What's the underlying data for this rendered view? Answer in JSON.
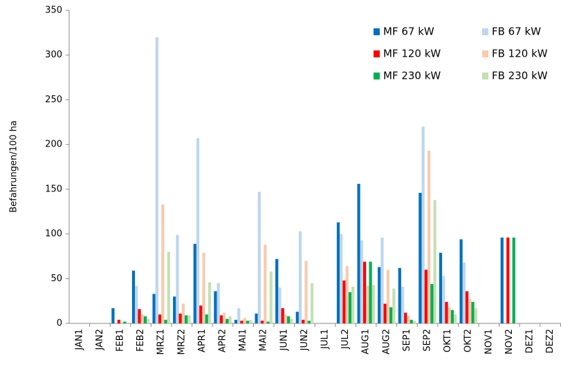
{
  "chart_data": {
    "type": "bar",
    "y_label": "Befahrungen/100 ha",
    "categories": [
      "JAN1",
      "JAN2",
      "FEB1",
      "FEB2",
      "MRZ1",
      "MRZ2",
      "APR1",
      "APR2",
      "MAI1",
      "MAI2",
      "JUN1",
      "JUN2",
      "JUL1",
      "JUL2",
      "AUG1",
      "AUG2",
      "SEP1",
      "SEP2",
      "OKT1",
      "OKT2",
      "NOV1",
      "NOV2",
      "DEZ1",
      "DEZ2"
    ],
    "series": [
      {
        "name": "MF 67 kW",
        "color": "#0070c0",
        "values": [
          0,
          0,
          17,
          59,
          33,
          30,
          89,
          36,
          4,
          11,
          72,
          13,
          0,
          113,
          156,
          63,
          62,
          146,
          79,
          94,
          0,
          96,
          0,
          0
        ]
      },
      {
        "name": "FB 67 kW",
        "color": "#bdd7ee",
        "values": [
          0,
          0,
          0,
          42,
          320,
          99,
          207,
          45,
          17,
          147,
          40,
          103,
          0,
          100,
          93,
          96,
          41,
          220,
          53,
          68,
          0,
          0,
          0,
          0
        ]
      },
      {
        "name": "MF 120 kW",
        "color": "#ff0000",
        "values": [
          0,
          0,
          4,
          16,
          10,
          11,
          20,
          9,
          3,
          3,
          17,
          4,
          0,
          48,
          69,
          22,
          12,
          60,
          24,
          36,
          0,
          96,
          0,
          0
        ]
      },
      {
        "name": "FB 120 kW",
        "color": "#f8cbad",
        "values": [
          0,
          0,
          1,
          10,
          133,
          22,
          79,
          12,
          6,
          88,
          10,
          70,
          0,
          64,
          42,
          60,
          8,
          193,
          18,
          27,
          0,
          0,
          0,
          0
        ]
      },
      {
        "name": "MF 230 kW",
        "color": "#00b050",
        "values": [
          0,
          0,
          2,
          8,
          4,
          9,
          10,
          5,
          3,
          2,
          8,
          3,
          0,
          35,
          69,
          18,
          4,
          44,
          15,
          24,
          0,
          96,
          0,
          0
        ]
      },
      {
        "name": "FB 230 kW",
        "color": "#c5e0b4",
        "values": [
          0,
          0,
          0,
          5,
          80,
          9,
          46,
          8,
          4,
          58,
          5,
          45,
          0,
          41,
          43,
          39,
          3,
          138,
          10,
          17,
          0,
          0,
          0,
          0
        ]
      }
    ],
    "ylim": [
      0,
      350
    ],
    "yticks": [
      0,
      50,
      100,
      150,
      200,
      250,
      300,
      350
    ],
    "legend": "upper right"
  }
}
